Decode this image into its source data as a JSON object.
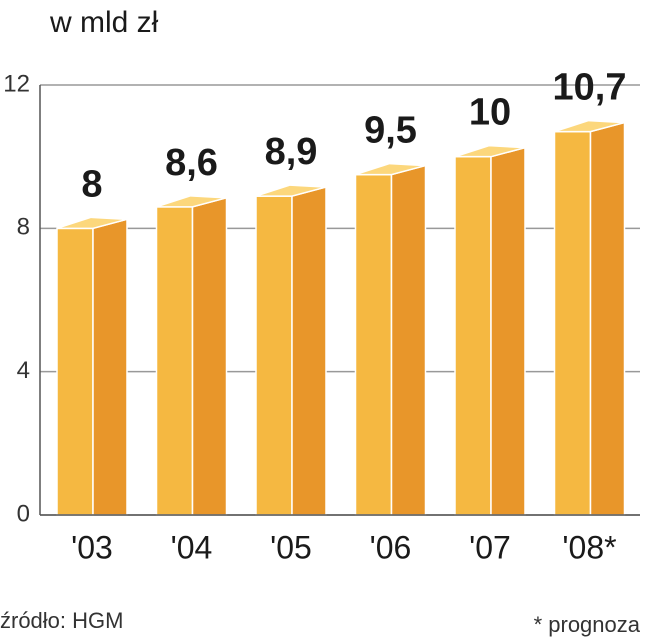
{
  "chart_data": {
    "type": "bar",
    "title": "w mld zł",
    "categories": [
      "'03",
      "'04",
      "'05",
      "'06",
      "'07",
      "'08*"
    ],
    "values": [
      8,
      8.6,
      8.9,
      9.5,
      10,
      10.7
    ],
    "value_labels": [
      "8",
      "8,6",
      "8,9",
      "9,5",
      "10",
      "10,7"
    ],
    "colors": {
      "front": "#f5b841",
      "side": "#e8962a",
      "top": "#fcd77c"
    },
    "ylim": [
      0,
      12
    ],
    "yticks": [
      0,
      4,
      8,
      12
    ],
    "grid": true,
    "source": "źródło: HGM",
    "note": "* prognoza"
  }
}
